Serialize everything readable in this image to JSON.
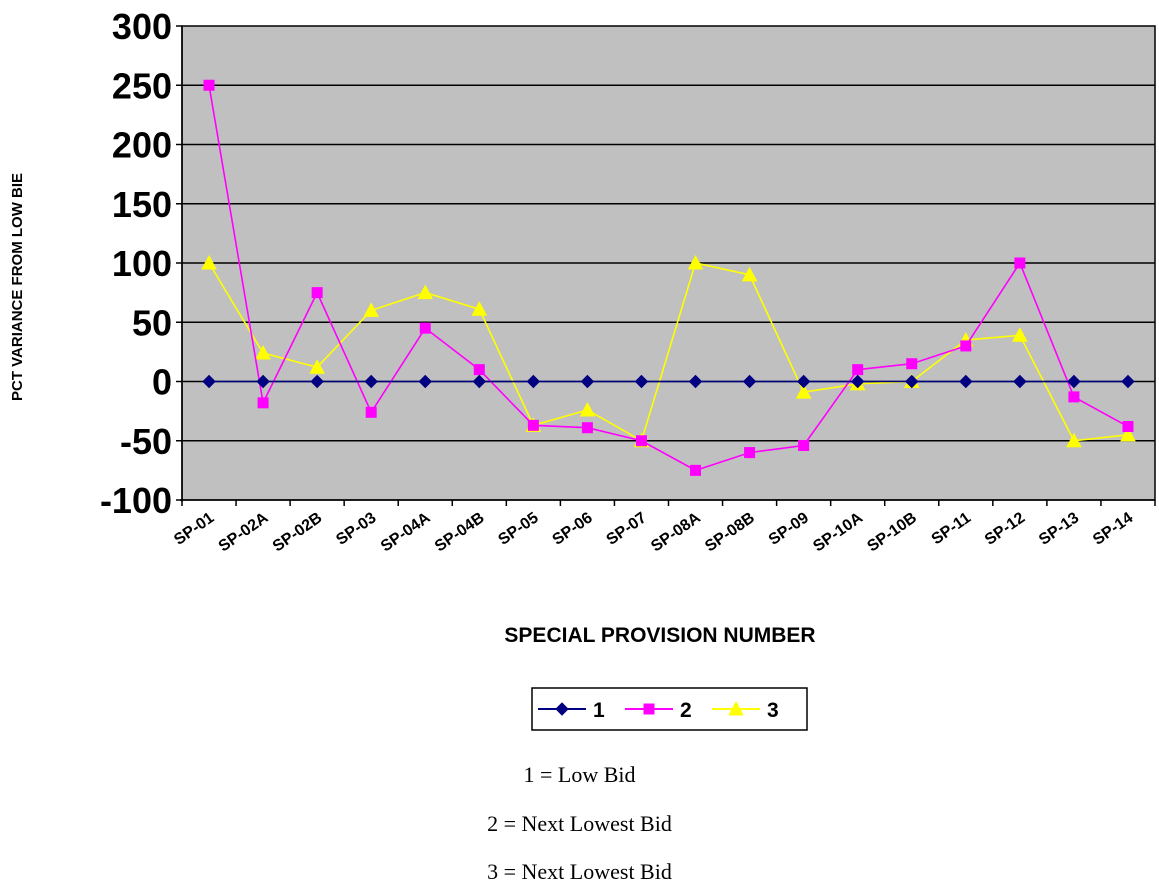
{
  "chart_data": {
    "type": "line",
    "title": "",
    "xlabel": "SPECIAL PROVISION NUMBER",
    "ylabel": "PCT VARIANCE FROM LOW BIE",
    "ylim": [
      -100,
      300
    ],
    "yticks": [
      -100,
      -50,
      0,
      50,
      100,
      150,
      200,
      250,
      300
    ],
    "grid": true,
    "legend_position": "bottom",
    "categories": [
      "SP-01",
      "SP-02A",
      "SP-02B",
      "SP-03",
      "SP-04A",
      "SP-04B",
      "SP-05",
      "SP-06",
      "SP-07",
      "SP-08A",
      "SP-08B",
      "SP-09",
      "SP-10A",
      "SP-10B",
      "SP-11",
      "SP-12",
      "SP-13",
      "SP-14"
    ],
    "series": [
      {
        "name": "1",
        "color": "#000080",
        "marker": "diamond",
        "values": [
          0,
          0,
          0,
          0,
          0,
          0,
          0,
          0,
          0,
          0,
          0,
          0,
          0,
          0,
          0,
          0,
          0,
          0
        ]
      },
      {
        "name": "2",
        "color": "#ff00ff",
        "marker": "square",
        "values": [
          250,
          -18,
          75,
          -26,
          45,
          10,
          -37,
          -39,
          -50,
          -75,
          -60,
          -54,
          10,
          15,
          30,
          100,
          -13,
          -38
        ]
      },
      {
        "name": "3",
        "color": "#ffff00",
        "marker": "triangle",
        "values": [
          100,
          24,
          12,
          60,
          75,
          61,
          -37,
          -24,
          -50,
          100,
          90,
          -9,
          -2,
          0,
          35,
          39,
          -50,
          -45
        ]
      }
    ],
    "plot_background": "#c0c0c0"
  },
  "notes": [
    "1 = Low Bid",
    "2 = Next Lowest Bid",
    "3 = Next Lowest Bid"
  ]
}
